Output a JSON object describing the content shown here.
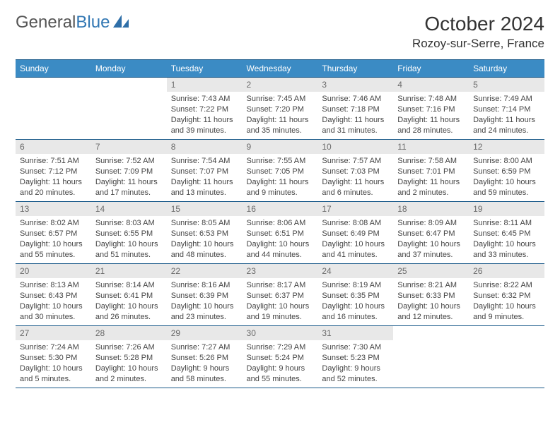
{
  "logo": {
    "text1": "General",
    "text2": "Blue"
  },
  "title": "October 2024",
  "location": "Rozoy-sur-Serre, France",
  "colors": {
    "header_bg": "#3b8bc4",
    "header_border": "#1a5a8a",
    "daynum_bg": "#e8e8e8",
    "daynum_color": "#6a6a6a",
    "text": "#444",
    "logo_accent": "#3277b3"
  },
  "daysOfWeek": [
    "Sunday",
    "Monday",
    "Tuesday",
    "Wednesday",
    "Thursday",
    "Friday",
    "Saturday"
  ],
  "firstDayOffset": 2,
  "daysInMonth": 31,
  "days": {
    "1": {
      "sunrise": "7:43 AM",
      "sunset": "7:22 PM",
      "daylight": "11 hours and 39 minutes."
    },
    "2": {
      "sunrise": "7:45 AM",
      "sunset": "7:20 PM",
      "daylight": "11 hours and 35 minutes."
    },
    "3": {
      "sunrise": "7:46 AM",
      "sunset": "7:18 PM",
      "daylight": "11 hours and 31 minutes."
    },
    "4": {
      "sunrise": "7:48 AM",
      "sunset": "7:16 PM",
      "daylight": "11 hours and 28 minutes."
    },
    "5": {
      "sunrise": "7:49 AM",
      "sunset": "7:14 PM",
      "daylight": "11 hours and 24 minutes."
    },
    "6": {
      "sunrise": "7:51 AM",
      "sunset": "7:12 PM",
      "daylight": "11 hours and 20 minutes."
    },
    "7": {
      "sunrise": "7:52 AM",
      "sunset": "7:09 PM",
      "daylight": "11 hours and 17 minutes."
    },
    "8": {
      "sunrise": "7:54 AM",
      "sunset": "7:07 PM",
      "daylight": "11 hours and 13 minutes."
    },
    "9": {
      "sunrise": "7:55 AM",
      "sunset": "7:05 PM",
      "daylight": "11 hours and 9 minutes."
    },
    "10": {
      "sunrise": "7:57 AM",
      "sunset": "7:03 PM",
      "daylight": "11 hours and 6 minutes."
    },
    "11": {
      "sunrise": "7:58 AM",
      "sunset": "7:01 PM",
      "daylight": "11 hours and 2 minutes."
    },
    "12": {
      "sunrise": "8:00 AM",
      "sunset": "6:59 PM",
      "daylight": "10 hours and 59 minutes."
    },
    "13": {
      "sunrise": "8:02 AM",
      "sunset": "6:57 PM",
      "daylight": "10 hours and 55 minutes."
    },
    "14": {
      "sunrise": "8:03 AM",
      "sunset": "6:55 PM",
      "daylight": "10 hours and 51 minutes."
    },
    "15": {
      "sunrise": "8:05 AM",
      "sunset": "6:53 PM",
      "daylight": "10 hours and 48 minutes."
    },
    "16": {
      "sunrise": "8:06 AM",
      "sunset": "6:51 PM",
      "daylight": "10 hours and 44 minutes."
    },
    "17": {
      "sunrise": "8:08 AM",
      "sunset": "6:49 PM",
      "daylight": "10 hours and 41 minutes."
    },
    "18": {
      "sunrise": "8:09 AM",
      "sunset": "6:47 PM",
      "daylight": "10 hours and 37 minutes."
    },
    "19": {
      "sunrise": "8:11 AM",
      "sunset": "6:45 PM",
      "daylight": "10 hours and 33 minutes."
    },
    "20": {
      "sunrise": "8:13 AM",
      "sunset": "6:43 PM",
      "daylight": "10 hours and 30 minutes."
    },
    "21": {
      "sunrise": "8:14 AM",
      "sunset": "6:41 PM",
      "daylight": "10 hours and 26 minutes."
    },
    "22": {
      "sunrise": "8:16 AM",
      "sunset": "6:39 PM",
      "daylight": "10 hours and 23 minutes."
    },
    "23": {
      "sunrise": "8:17 AM",
      "sunset": "6:37 PM",
      "daylight": "10 hours and 19 minutes."
    },
    "24": {
      "sunrise": "8:19 AM",
      "sunset": "6:35 PM",
      "daylight": "10 hours and 16 minutes."
    },
    "25": {
      "sunrise": "8:21 AM",
      "sunset": "6:33 PM",
      "daylight": "10 hours and 12 minutes."
    },
    "26": {
      "sunrise": "8:22 AM",
      "sunset": "6:32 PM",
      "daylight": "10 hours and 9 minutes."
    },
    "27": {
      "sunrise": "7:24 AM",
      "sunset": "5:30 PM",
      "daylight": "10 hours and 5 minutes."
    },
    "28": {
      "sunrise": "7:26 AM",
      "sunset": "5:28 PM",
      "daylight": "10 hours and 2 minutes."
    },
    "29": {
      "sunrise": "7:27 AM",
      "sunset": "5:26 PM",
      "daylight": "9 hours and 58 minutes."
    },
    "30": {
      "sunrise": "7:29 AM",
      "sunset": "5:24 PM",
      "daylight": "9 hours and 55 minutes."
    },
    "31": {
      "sunrise": "7:30 AM",
      "sunset": "5:23 PM",
      "daylight": "9 hours and 52 minutes."
    }
  },
  "labels": {
    "sunrise": "Sunrise:",
    "sunset": "Sunset:",
    "daylight": "Daylight:"
  }
}
